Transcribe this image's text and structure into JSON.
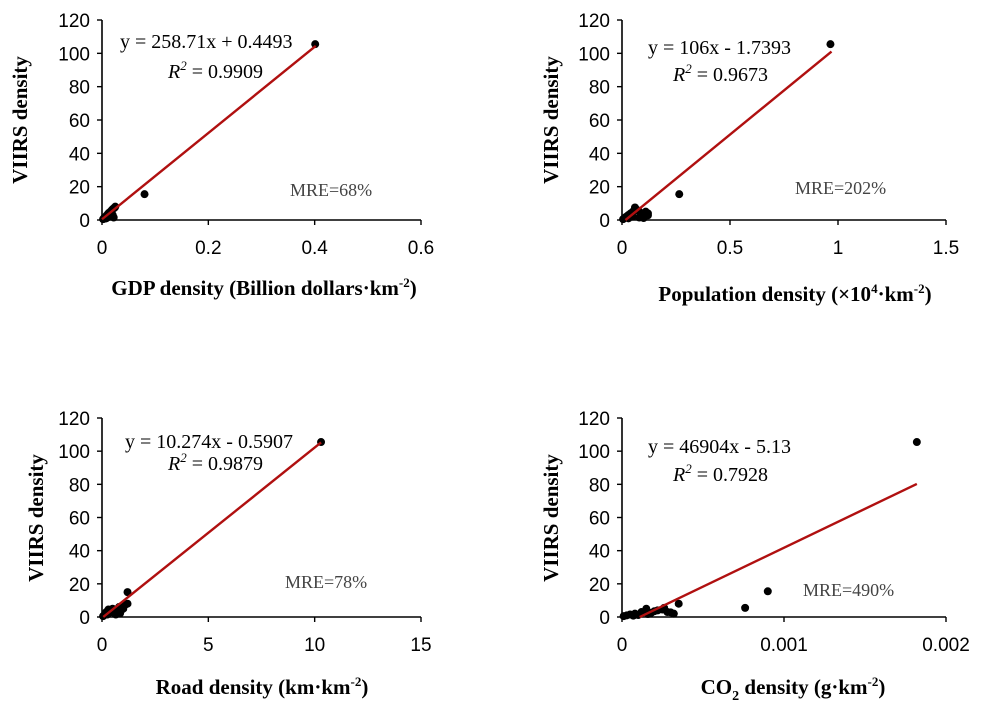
{
  "colors": {
    "points": "#000000",
    "fit_line": "#b01010",
    "axis": "#000000"
  },
  "chart_data": [
    {
      "type": "scatter",
      "ylabel": "VIIRS density",
      "xlabel_parts": [
        "GDP density (Billion dollars·km",
        "-2",
        ")"
      ],
      "xlim": [
        0,
        0.6
      ],
      "xticks": [
        0,
        0.2,
        0.4,
        0.6
      ],
      "xtick_labels": [
        "0",
        "0.2",
        "0.4",
        "0.6"
      ],
      "ylim": [
        0,
        120
      ],
      "yticks": [
        0,
        20,
        40,
        60,
        80,
        100,
        120
      ],
      "ytick_labels": [
        "0",
        "20",
        "40",
        "60",
        "80",
        "100",
        "120"
      ],
      "points": {
        "x": [
          0.002,
          0.004,
          0.006,
          0.008,
          0.01,
          0.012,
          0.014,
          0.016,
          0.018,
          0.02,
          0.022,
          0.024,
          0.025,
          0.008,
          0.015,
          0.02,
          0.005,
          0.01,
          0.013,
          0.018,
          0.022,
          0.08,
          0.401
        ],
        "y": [
          0.5,
          1.2,
          1.8,
          2.5,
          3.2,
          4,
          4.5,
          5,
          5.8,
          6.5,
          7,
          7.5,
          8,
          1,
          2,
          3,
          0.8,
          1.5,
          2.2,
          4.8,
          1.5,
          15.5,
          105.5
        ]
      },
      "fit": {
        "slope": 258.71,
        "intercept": 0.4493,
        "x_range": [
          0,
          0.402
        ]
      },
      "equation_text": "y = 258.71x + 0.4493",
      "r2_label": "R",
      "r2_value": " = 0.9909",
      "mre_text": "MRE=68%"
    },
    {
      "type": "scatter",
      "ylabel": "VIIRS density",
      "xlabel_parts": [
        "Population density (×10",
        "4",
        "·km",
        "-2",
        ")"
      ],
      "xlim": [
        0,
        1.5
      ],
      "xticks": [
        0,
        0.5,
        1,
        1.5
      ],
      "xtick_labels": [
        "0",
        "0.5",
        "1",
        "1.5"
      ],
      "ylim": [
        0,
        120
      ],
      "yticks": [
        0,
        20,
        40,
        60,
        80,
        100,
        120
      ],
      "ytick_labels": [
        "0",
        "20",
        "40",
        "60",
        "80",
        "100",
        "120"
      ],
      "points": {
        "x": [
          0.005,
          0.01,
          0.015,
          0.02,
          0.03,
          0.04,
          0.05,
          0.06,
          0.07,
          0.08,
          0.09,
          0.1,
          0.11,
          0.12,
          0.03,
          0.05,
          0.08,
          0.1,
          0.12,
          0.265,
          0.965
        ],
        "y": [
          0.5,
          1,
          1.5,
          2,
          3,
          4,
          5,
          7.5,
          6,
          5,
          3,
          2.5,
          5,
          4,
          1,
          2,
          1.5,
          1.2,
          2.8,
          15.5,
          105.5
        ]
      },
      "fit": {
        "slope": 106,
        "intercept": -1.7393,
        "x_range": [
          0.016,
          0.97
        ]
      },
      "equation_text": "y = 106x - 1.7393",
      "r2_label": "R",
      "r2_value": " = 0.9673",
      "mre_text": "MRE=202%"
    },
    {
      "type": "scatter",
      "ylabel": "VIIRS density",
      "xlabel_parts": [
        "Road density (km·km",
        "-2",
        ")"
      ],
      "xlim": [
        0,
        15
      ],
      "xticks": [
        0,
        5,
        10,
        15
      ],
      "xtick_labels": [
        "0",
        "5",
        "10",
        "15"
      ],
      "ylim": [
        0,
        120
      ],
      "yticks": [
        0,
        20,
        40,
        60,
        80,
        100,
        120
      ],
      "ytick_labels": [
        "0",
        "20",
        "40",
        "60",
        "80",
        "100",
        "120"
      ],
      "points": {
        "x": [
          0.05,
          0.1,
          0.15,
          0.2,
          0.3,
          0.4,
          0.5,
          0.6,
          0.7,
          0.8,
          0.9,
          1,
          1.1,
          1.2,
          0.25,
          0.35,
          0.45,
          0.65,
          0.85,
          1.2,
          10.3
        ],
        "y": [
          0.5,
          1,
          2,
          3,
          4.5,
          3.5,
          5,
          2,
          3,
          6,
          4,
          5,
          7.5,
          8,
          1.5,
          2.5,
          3,
          1.5,
          2.2,
          15,
          105.5
        ]
      },
      "fit": {
        "slope": 10.274,
        "intercept": -0.5907,
        "x_range": [
          0.06,
          10.3
        ]
      },
      "equation_text": "y = 10.274x - 0.5907",
      "r2_label": "R",
      "r2_value": " = 0.9879",
      "mre_text": "MRE=78%"
    },
    {
      "type": "scatter",
      "ylabel": "VIIRS density",
      "xlabel_parts": [
        "CO",
        "2",
        " density (g·km",
        "-2",
        ")"
      ],
      "xlim": [
        0,
        0.002
      ],
      "xticks": [
        0,
        0.001,
        0.002
      ],
      "xtick_labels": [
        "0",
        "0.001",
        "0.002"
      ],
      "ylim": [
        0,
        120
      ],
      "yticks": [
        0,
        20,
        40,
        60,
        80,
        100,
        120
      ],
      "ytick_labels": [
        "0",
        "20",
        "40",
        "60",
        "80",
        "100",
        "120"
      ],
      "points": {
        "x": [
          1e-05,
          3e-05,
          5e-05,
          8e-05,
          0.0001,
          0.00012,
          0.00015,
          0.00018,
          0.0002,
          0.00022,
          0.00025,
          0.00028,
          0.0003,
          0.00032,
          0.00035,
          7e-05,
          0.00016,
          0.00026,
          0.00076,
          0.0009,
          0.00182
        ],
        "y": [
          0.5,
          1,
          1.5,
          2,
          1.2,
          3,
          5,
          2.5,
          3.5,
          4,
          4.5,
          3,
          2.8,
          2,
          8,
          0.8,
          1.8,
          5.5,
          5.5,
          15.5,
          105.5
        ]
      },
      "fit": {
        "slope": 46904,
        "intercept": -5.13,
        "x_range": [
          0.000109,
          0.00182
        ]
      },
      "equation_text": "y = 46904x - 5.13",
      "r2_label": "R",
      "r2_value": " = 0.7928",
      "mre_text": "MRE=490%"
    }
  ]
}
